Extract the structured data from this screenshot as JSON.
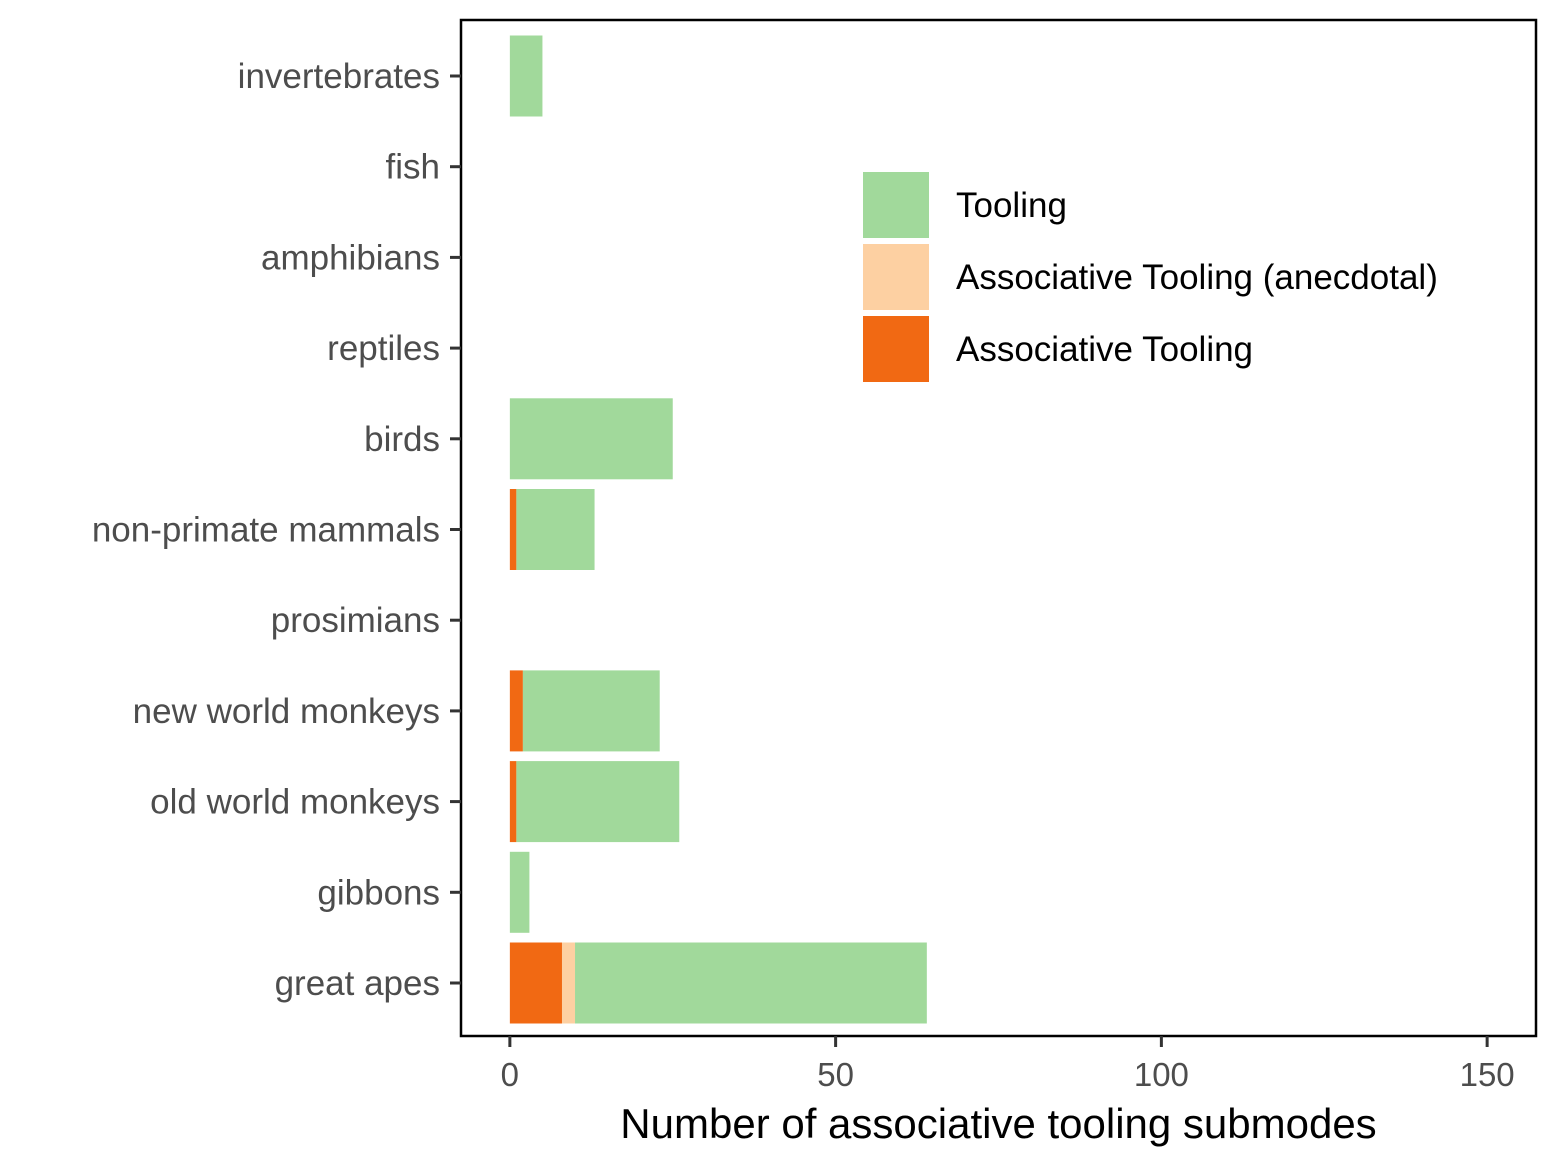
{
  "chart_data": {
    "type": "bar",
    "orientation": "horizontal",
    "stacked": true,
    "title": "",
    "xlabel": "Number of associative tooling submodes",
    "ylabel": "",
    "xlim": [
      -7.5,
      157.5
    ],
    "xticks": [
      0,
      50,
      100,
      150
    ],
    "grid": false,
    "legend_position": "top-right",
    "categories": [
      "invertebrates",
      "fish",
      "amphibians",
      "reptiles",
      "birds",
      "non-primate mammals",
      "prosimians",
      "new world monkeys",
      "old world monkeys",
      "gibbons",
      "great apes"
    ],
    "series": [
      {
        "name": "Associative Tooling",
        "color": "#f16913",
        "values": [
          0,
          0,
          0,
          0,
          0,
          1,
          0,
          2,
          1,
          0,
          8
        ]
      },
      {
        "name": "Associative Tooling (anecdotal)",
        "color": "#fdd0a2",
        "values": [
          0,
          0,
          0,
          0,
          0,
          0,
          0,
          0,
          0,
          0,
          2
        ]
      },
      {
        "name": "Tooling",
        "color": "#a1d99b",
        "values": [
          5,
          0,
          0,
          0,
          25,
          12,
          0,
          21,
          25,
          3,
          54
        ]
      }
    ],
    "legend_order": [
      "Tooling",
      "Associative Tooling (anecdotal)",
      "Associative Tooling"
    ]
  }
}
